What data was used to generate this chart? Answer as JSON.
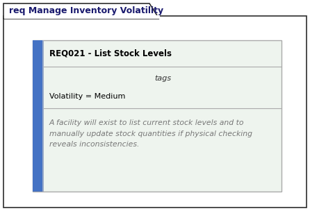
{
  "outer_bg": "#ffffff",
  "outer_border": "#2d2d2d",
  "outer_title": "req Manage Inventory Volatility",
  "outer_title_fontsize": 9,
  "outer_title_color": "#1a1a6e",
  "inner_bg": "#eef4ee",
  "inner_border": "#aaaaaa",
  "blue_bar_color": "#4472C4",
  "req_title": "REQ021 - List Stock Levels",
  "req_title_fontsize": 8.5,
  "req_title_color": "#000000",
  "tags_label": "tags",
  "tags_fontsize": 8,
  "tags_color": "#333333",
  "volatility_text": "Volatility = Medium",
  "volatility_fontsize": 8,
  "volatility_color": "#000000",
  "notes_text": "A facility will exist to list current stock levels and to\nmanually update stock quantities if physical checking\nreveals inconsistencies.",
  "notes_fontsize": 7.8,
  "notes_color": "#777777",
  "fig_w": 4.46,
  "fig_h": 3.04,
  "dpi": 100
}
